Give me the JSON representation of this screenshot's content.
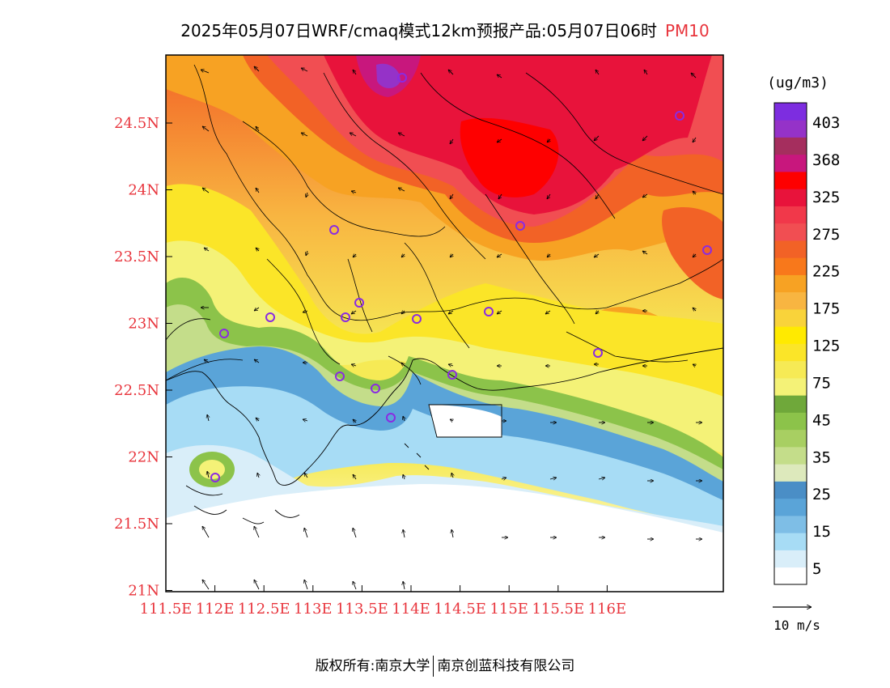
{
  "title": {
    "main": "2025年05月07日WRF/cmaq模式12km预报产品:05月07日06时",
    "pollutant": "PM10"
  },
  "map": {
    "lat_labels": [
      "24.5N",
      "24N",
      "23.5N",
      "23N",
      "22.5N",
      "22N",
      "21.5N",
      "21N"
    ],
    "lon_labels": [
      "111.5E",
      "112E",
      "112.5E",
      "113E",
      "113.5E",
      "114E",
      "114.5E",
      "115E",
      "115.5E",
      "116E"
    ],
    "label_color": "#e8343c",
    "station_marker_color": "#8a2be2"
  },
  "legend": {
    "unit": "(ug/m3)",
    "labels": [
      "403",
      "368",
      "325",
      "275",
      "225",
      "175",
      "125",
      "75",
      "45",
      "35",
      "25",
      "15",
      "5"
    ],
    "colors": [
      "#ffffff",
      "#d9eef9",
      "#a7dcf5",
      "#7ebee6",
      "#5aa4d8",
      "#4a8ec6",
      "#dde9bc",
      "#c4dd8a",
      "#a8cf62",
      "#8cc34a",
      "#6fa83a",
      "#f4f277",
      "#f6ea55",
      "#fbe528",
      "#ffea00",
      "#f9d33a",
      "#f8b541",
      "#f7a223",
      "#f8781b",
      "#f26226",
      "#f14e52",
      "#f1384a",
      "#e8133b",
      "#fe0000",
      "#c8177d",
      "#a52e5e",
      "#9532c8",
      "#7d2de0"
    ],
    "wind_scale": "10 m/s"
  },
  "footer": {
    "left": "版权所有:南京大学",
    "right": "南京创蓝科技有限公司"
  }
}
